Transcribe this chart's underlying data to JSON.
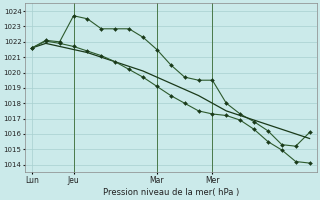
{
  "background_color": "#cbeaea",
  "grid_color": "#a8d0d0",
  "line_color1": "#2d5a2d",
  "line_color2": "#1a3a1a",
  "ylabel_ticks": [
    1014,
    1015,
    1016,
    1017,
    1018,
    1019,
    1020,
    1021,
    1022,
    1023,
    1024
  ],
  "ylim": [
    1013.5,
    1024.5
  ],
  "xlabel": "Pression niveau de la mer( hPa )",
  "xtick_labels": [
    "Lun",
    "Jeu",
    "Mar",
    "Mer"
  ],
  "xtick_positions": [
    0,
    3,
    9,
    13
  ],
  "vline_positions": [
    3,
    9,
    13
  ],
  "series1_x": [
    0,
    1,
    2,
    3,
    4,
    5,
    6,
    7,
    8,
    9,
    10,
    11,
    12,
    13,
    14,
    15,
    16,
    17,
    18,
    19,
    20
  ],
  "series1_y": [
    1021.6,
    1022.1,
    1022.0,
    1023.7,
    1023.5,
    1022.85,
    1022.85,
    1022.85,
    1022.3,
    1021.5,
    1020.5,
    1019.7,
    1019.5,
    1019.5,
    1018.0,
    1017.3,
    1016.8,
    1016.2,
    1015.3,
    1015.2,
    1016.1
  ],
  "series2_x": [
    0,
    1,
    2,
    3,
    4,
    5,
    6,
    7,
    8,
    9,
    10,
    11,
    12,
    13,
    14,
    15,
    16,
    17,
    18,
    19,
    20
  ],
  "series2_y": [
    1021.6,
    1021.9,
    1021.7,
    1021.5,
    1021.3,
    1021.0,
    1020.7,
    1020.4,
    1020.1,
    1019.7,
    1019.3,
    1018.9,
    1018.5,
    1018.0,
    1017.5,
    1017.2,
    1016.9,
    1016.6,
    1016.3,
    1016.0,
    1015.7
  ],
  "series3_x": [
    0,
    1,
    2,
    3,
    4,
    5,
    6,
    7,
    8,
    9,
    10,
    11,
    12,
    13,
    14,
    15,
    16,
    17,
    18,
    19,
    20
  ],
  "series3_y": [
    1021.6,
    1022.05,
    1021.9,
    1021.7,
    1021.4,
    1021.1,
    1020.7,
    1020.2,
    1019.7,
    1019.1,
    1018.5,
    1018.0,
    1017.5,
    1017.3,
    1017.2,
    1016.9,
    1016.3,
    1015.5,
    1014.95,
    1014.2,
    1014.1
  ],
  "n_points": 21
}
